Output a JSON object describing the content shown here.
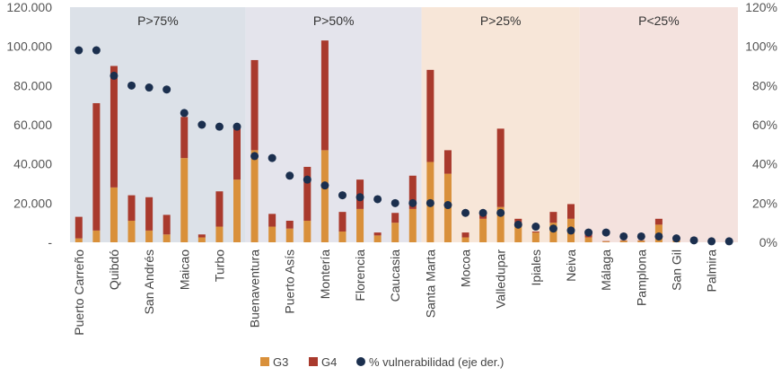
{
  "chart_data": {
    "type": "bar",
    "stacked": true,
    "categories": [
      "Puerto Carreño",
      "",
      "Quibdó",
      "",
      "San Andrés",
      "",
      "Maicao",
      "",
      "Turbo",
      "",
      "Buenaventura",
      "",
      "Puerto Asís",
      "",
      "Montería",
      "",
      "Florencia",
      "",
      "Caucasia",
      "",
      "Santa Marta",
      "",
      "Mocoa",
      "",
      "Valledupar",
      "",
      "Ipiales",
      "",
      "Neiva",
      "",
      "Málaga",
      "",
      "Pamplona",
      "",
      "San Gil",
      "",
      "Palmira",
      ""
    ],
    "series": [
      {
        "name": "G3",
        "axis": "left",
        "color": "#D9903A",
        "values": [
          2000,
          6000,
          28000,
          11000,
          6000,
          4000,
          43000,
          2500,
          8000,
          32000,
          47000,
          8000,
          7000,
          11000,
          47000,
          5500,
          17000,
          3500,
          10000,
          17000,
          41000,
          35000,
          2500,
          12000,
          18000,
          8000,
          5000,
          10000,
          12000,
          2500,
          400,
          800,
          800,
          9000,
          900,
          400,
          300,
          200
        ]
      },
      {
        "name": "G4",
        "axis": "left",
        "color": "#A93A2D",
        "values": [
          11000,
          65000,
          62000,
          13000,
          17000,
          10000,
          21000,
          1500,
          18000,
          28000,
          46000,
          6500,
          4000,
          27500,
          56000,
          10000,
          15000,
          1500,
          5000,
          17000,
          47000,
          12000,
          2500,
          2000,
          40000,
          4000,
          500,
          5500,
          7500,
          2500,
          200,
          200,
          200,
          3000,
          100,
          100,
          100,
          100
        ]
      },
      {
        "name": "% vulnerabilidad (eje der.)",
        "axis": "right",
        "type": "scatter",
        "color": "#1B2F4E",
        "values": [
          98,
          98,
          85,
          80,
          79,
          78,
          66,
          60,
          59,
          59,
          44,
          43,
          34,
          32,
          29,
          24,
          23,
          22,
          20,
          20,
          20,
          19,
          15,
          15,
          15,
          9,
          8,
          7,
          6,
          5,
          5,
          3,
          3,
          3,
          2,
          1,
          0.5,
          0.5
        ]
      }
    ],
    "y_left": {
      "ylim": [
        0,
        120000
      ],
      "ticks": [
        "-",
        "20.000",
        "40.000",
        "60.000",
        "80.000",
        "100.000",
        "120.000"
      ]
    },
    "y_right": {
      "ylim": [
        0,
        120
      ],
      "ticks": [
        "0%",
        "20%",
        "40%",
        "60%",
        "80%",
        "100%",
        "120%"
      ]
    },
    "zones": [
      {
        "label": "P>75%",
        "from": 0,
        "to": 9,
        "color": "#DCE1E8"
      },
      {
        "label": "P>50%",
        "from": 10,
        "to": 19,
        "color": "#E4E4EC"
      },
      {
        "label": "P>25%",
        "from": 20,
        "to": 28,
        "color": "#F7E6D8"
      },
      {
        "label": "P<25%",
        "from": 29,
        "to": 37,
        "color": "#F4E2DE"
      }
    ],
    "legend_placement": "bottom",
    "grid": false
  }
}
